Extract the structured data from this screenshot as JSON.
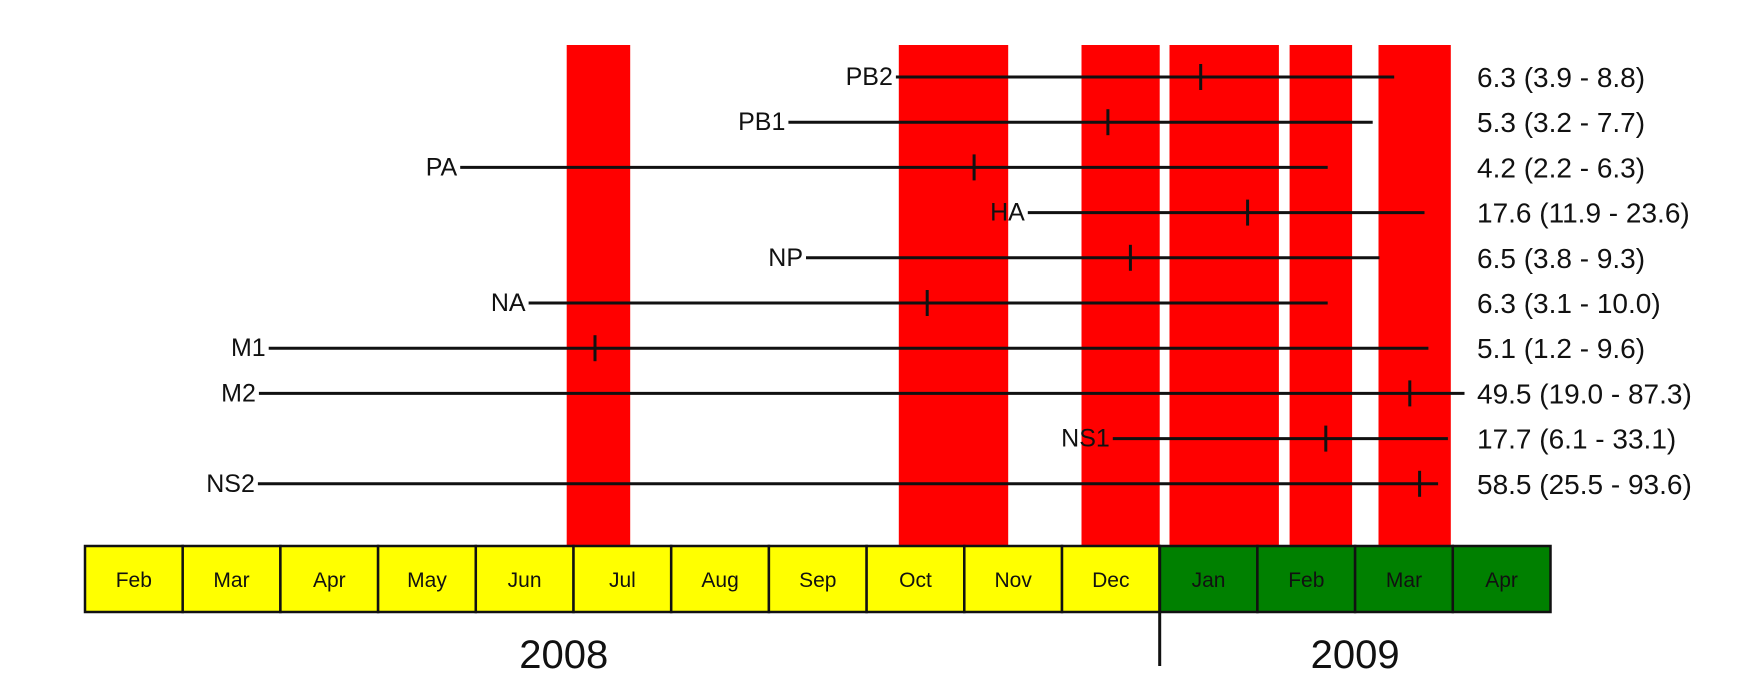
{
  "chart_data": {
    "type": "timeline",
    "title": "",
    "colors": {
      "highlight": "#ff0000",
      "year_2008": "#ffff00",
      "year_2009": "#008000",
      "line": "#111111"
    },
    "months": [
      {
        "label": "Feb",
        "year": "2008"
      },
      {
        "label": "Mar",
        "year": "2008"
      },
      {
        "label": "Apr",
        "year": "2008"
      },
      {
        "label": "May",
        "year": "2008"
      },
      {
        "label": "Jun",
        "year": "2008"
      },
      {
        "label": "Jul",
        "year": "2008"
      },
      {
        "label": "Aug",
        "year": "2008"
      },
      {
        "label": "Sep",
        "year": "2008"
      },
      {
        "label": "Oct",
        "year": "2008"
      },
      {
        "label": "Nov",
        "year": "2008"
      },
      {
        "label": "Dec",
        "year": "2008"
      },
      {
        "label": "Jan",
        "year": "2009"
      },
      {
        "label": "Feb",
        "year": "2009"
      },
      {
        "label": "Mar",
        "year": "2009"
      },
      {
        "label": "Apr",
        "year": "2009"
      }
    ],
    "years": [
      {
        "label": "2008",
        "center_month": 4.9
      },
      {
        "label": "2009",
        "center_month": 13.0
      }
    ],
    "year_divider_month": 11,
    "highlight_bands": [
      {
        "start": 4.93,
        "end": 5.58
      },
      {
        "start": 8.33,
        "end": 9.45
      },
      {
        "start": 10.2,
        "end": 11.0
      },
      {
        "start": 11.1,
        "end": 12.22
      },
      {
        "start": 12.33,
        "end": 12.97
      },
      {
        "start": 13.24,
        "end": 13.98
      }
    ],
    "series": [
      {
        "name": "PB2",
        "start": 8.3,
        "end": 13.4,
        "estimate": 11.42,
        "value_text": "6.3 (3.9 - 8.8)"
      },
      {
        "name": "PB1",
        "start": 7.2,
        "end": 13.18,
        "estimate": 10.47,
        "value_text": "5.3 (3.2 - 7.7)"
      },
      {
        "name": "PA",
        "start": 3.84,
        "end": 12.72,
        "estimate": 9.1,
        "value_text": "4.2 (2.2 - 6.3)"
      },
      {
        "name": "HA",
        "start": 9.65,
        "end": 13.71,
        "estimate": 11.9,
        "value_text": "17.6 (11.9 - 23.6)"
      },
      {
        "name": "NP",
        "start": 7.38,
        "end": 13.25,
        "estimate": 10.7,
        "value_text": "6.5 (3.8 - 9.3)"
      },
      {
        "name": "NA",
        "start": 4.54,
        "end": 12.72,
        "estimate": 8.62,
        "value_text": "6.3 (3.1 - 10.0)"
      },
      {
        "name": "M1",
        "start": 1.88,
        "end": 13.75,
        "estimate": 5.22,
        "value_text": "5.1 (1.2 - 9.6)"
      },
      {
        "name": "M2",
        "start": 1.78,
        "end": 14.12,
        "estimate": 13.56,
        "value_text": "49.5 (19.0 - 87.3)"
      },
      {
        "name": "NS1",
        "start": 10.52,
        "end": 13.95,
        "estimate": 12.7,
        "value_text": "17.7 (6.1 - 33.1)"
      },
      {
        "name": "NS2",
        "start": 1.77,
        "end": 13.85,
        "estimate": 13.66,
        "value_text": "58.5 (25.5 - 93.6)"
      }
    ]
  }
}
